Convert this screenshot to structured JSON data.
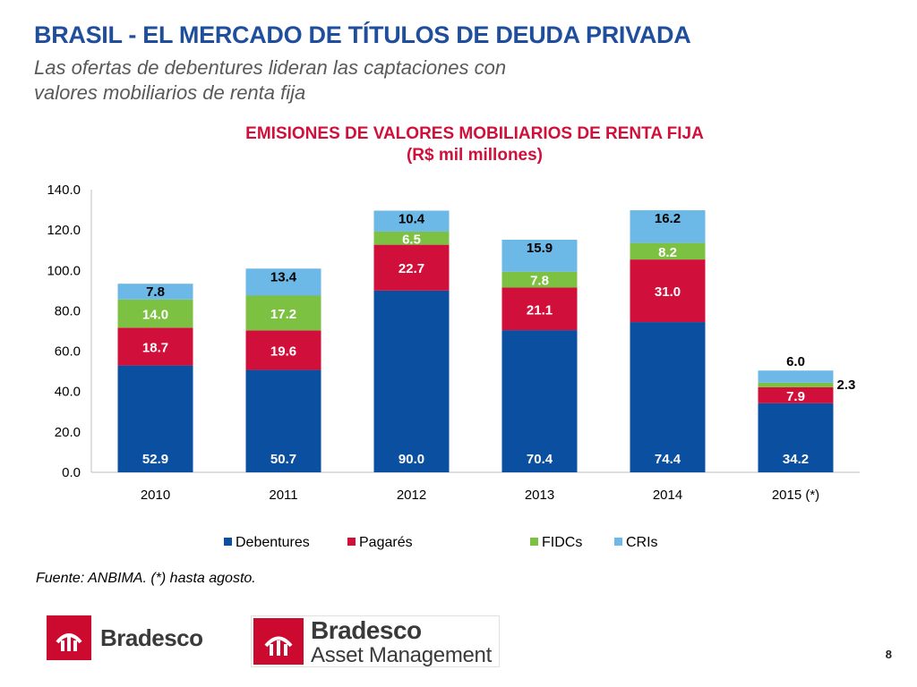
{
  "header": {
    "title": "BRASIL - EL MERCADO DE TÍTULOS DE DEUDA PRIVADA",
    "subtitle_line1": "Las ofertas de debentures lideran las captaciones con",
    "subtitle_line2": "valores mobiliarios de renta fija"
  },
  "chart_data": {
    "type": "bar",
    "stacked": true,
    "title_line1": "EMISIONES DE VALORES MOBILIARIOS DE RENTA FIJA",
    "title_line2": "(R$ mil millones)",
    "categories": [
      "2010",
      "2011",
      "2012",
      "2013",
      "2014",
      "2015 (*)"
    ],
    "ylim": [
      0,
      140
    ],
    "yticks": [
      "0.0",
      "20.0",
      "40.0",
      "60.0",
      "80.0",
      "100.0",
      "120.0",
      "140.0"
    ],
    "grid": false,
    "legend_position": "bottom",
    "series": [
      {
        "name": "Debentures",
        "color": "#0a4fa0",
        "label_color": "#ffffff",
        "values": [
          52.9,
          50.7,
          90.0,
          70.4,
          74.4,
          34.2
        ],
        "labels": [
          "52.9",
          "50.7",
          "90.0",
          "70.4",
          "74.4",
          "34.2"
        ]
      },
      {
        "name": "Pagarés",
        "color": "#d0103a",
        "label_color": "#ffffff",
        "values": [
          18.7,
          19.6,
          22.7,
          21.1,
          31.0,
          7.9
        ],
        "labels": [
          "18.7",
          "19.6",
          "22.7",
          "21.1",
          "31.0",
          "7.9"
        ]
      },
      {
        "name": "FIDCs",
        "color": "#7dc142",
        "label_color": "#ffffff",
        "values": [
          14.0,
          17.2,
          6.5,
          7.8,
          8.2,
          2.3
        ],
        "labels": [
          "14.0",
          "17.2",
          "6.5",
          "7.8",
          "8.2",
          "2.3"
        ]
      },
      {
        "name": "CRIs",
        "color": "#6cb8e6",
        "label_color": "#000000",
        "values": [
          7.8,
          13.4,
          10.4,
          15.9,
          16.2,
          6.0
        ],
        "labels": [
          "7.8",
          "13.4",
          "10.4",
          "15.9",
          "16.2",
          "6.0"
        ]
      }
    ]
  },
  "footer": {
    "source": "Fuente: ANBIMA. (*) hasta agosto.",
    "logo1_text": "Bradesco",
    "logo2_name": "Bradesco",
    "logo2_sub": "Asset Management",
    "page_number": "8"
  }
}
